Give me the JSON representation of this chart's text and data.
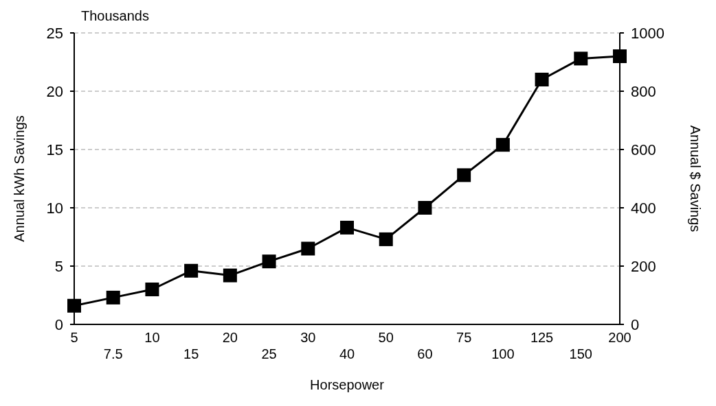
{
  "chart_data": {
    "type": "line",
    "xlabel": "Horsepower",
    "ylabel": "Annual kWh Savings",
    "y2label": "Annual $ Savings",
    "annotations": [
      "Thousands"
    ],
    "categories": [
      "5",
      "7.5",
      "10",
      "15",
      "20",
      "25",
      "30",
      "40",
      "50",
      "60",
      "75",
      "100",
      "125",
      "150",
      "200"
    ],
    "series": [
      {
        "color": "#000000",
        "values": [
          1.6,
          2.3,
          3.0,
          4.6,
          4.2,
          5.4,
          6.5,
          8.3,
          7.3,
          10.0,
          12.8,
          15.4,
          21.0,
          22.8,
          23.0
        ]
      }
    ],
    "ylim": [
      0,
      25
    ],
    "yticks": [
      0,
      5,
      10,
      15,
      20,
      25
    ],
    "y2lim": [
      0,
      1000
    ],
    "y2ticks": [
      0,
      200,
      400,
      600,
      800,
      1000
    ],
    "grid": "y",
    "marker": "square",
    "line_style": "solid"
  }
}
